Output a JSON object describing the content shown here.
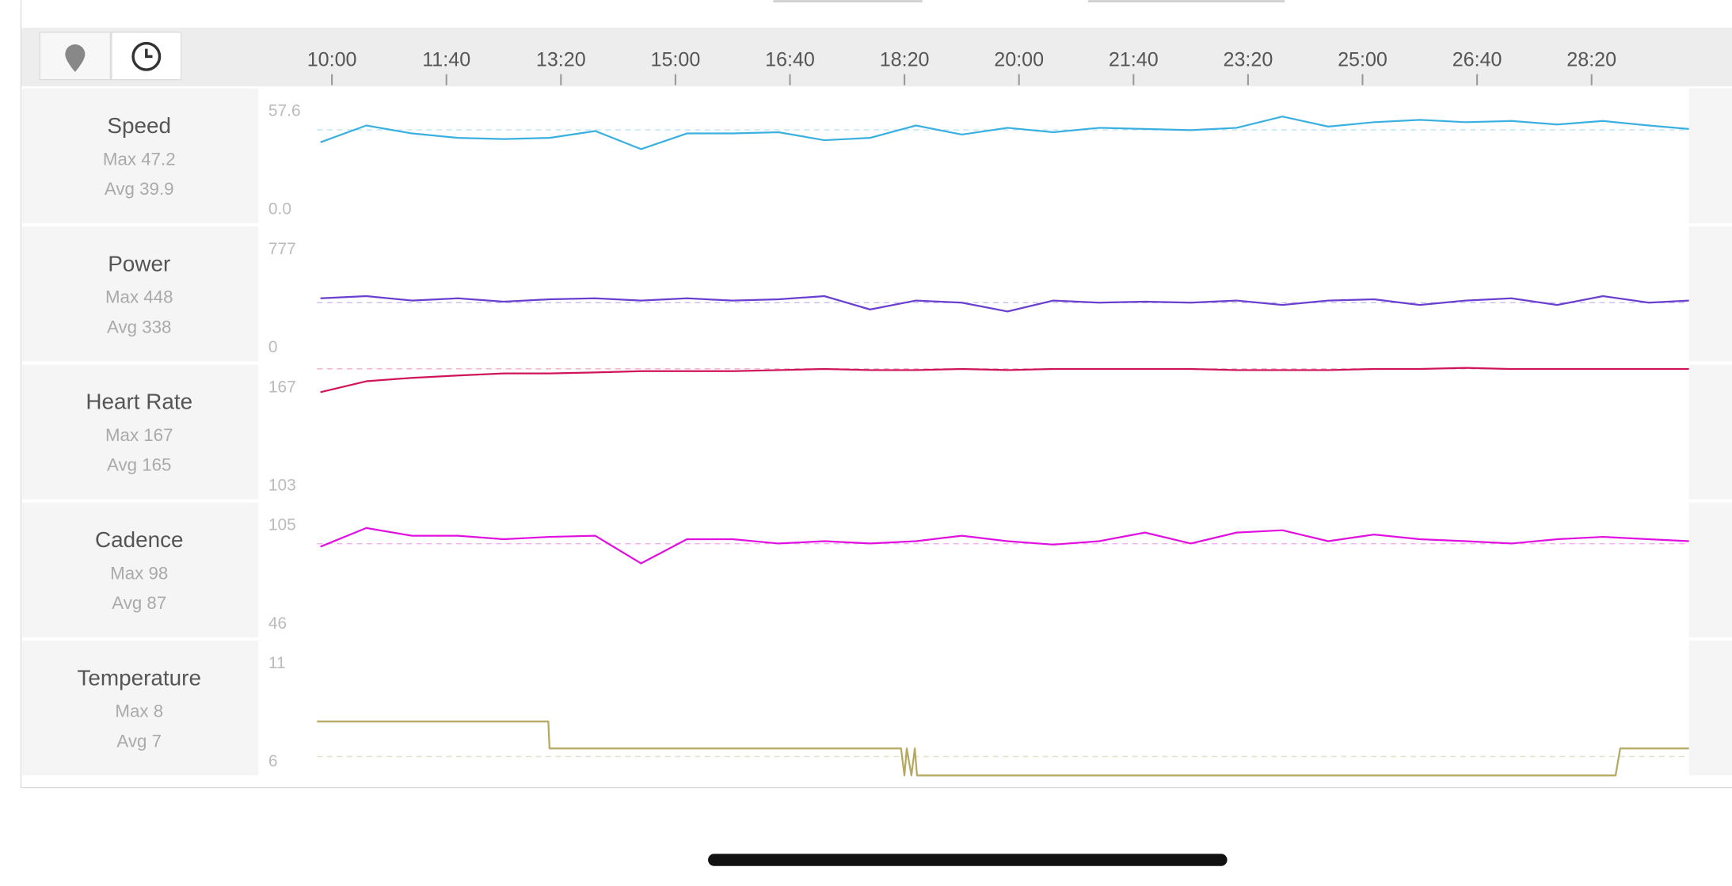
{
  "time_axis": {
    "xlim": [
      587,
      1785
    ],
    "xticks": [
      {
        "value": 600,
        "label": "10:00"
      },
      {
        "value": 700,
        "label": "11:40"
      },
      {
        "value": 800,
        "label": "13:20"
      },
      {
        "value": 900,
        "label": "15:00"
      },
      {
        "value": 1000,
        "label": "16:40"
      },
      {
        "value": 1100,
        "label": "18:20"
      },
      {
        "value": 1200,
        "label": "20:00"
      },
      {
        "value": 1300,
        "label": "21:40"
      },
      {
        "value": 1400,
        "label": "23:20"
      },
      {
        "value": 1500,
        "label": "25:00"
      },
      {
        "value": 1600,
        "label": "26:40"
      },
      {
        "value": 1700,
        "label": "28:20"
      }
    ]
  },
  "chart_data": [
    {
      "type": "line",
      "title": "Speed",
      "max_label": "Max 47.2",
      "avg_label": "Avg 39.9",
      "color": "#3ab0e0",
      "ylim": [
        0,
        57.6
      ],
      "yticks": [
        {
          "value": 0,
          "label": "0.0"
        },
        57.6
      ],
      "reference_line": 39.9,
      "x": [
        590,
        630,
        670,
        710,
        750,
        790,
        830,
        870,
        910,
        950,
        990,
        1030,
        1070,
        1110,
        1150,
        1190,
        1230,
        1270,
        1310,
        1350,
        1390,
        1430,
        1470,
        1510,
        1550,
        1590,
        1630,
        1670,
        1710,
        1750,
        1785
      ],
      "values": [
        34.6,
        41.8,
        38.4,
        36.5,
        36,
        36.5,
        39.4,
        31.7,
        38.4,
        38.4,
        38.9,
        35.5,
        36.5,
        41.8,
        37.9,
        40.8,
        38.9,
        40.8,
        40.3,
        39.8,
        40.8,
        45.6,
        41.3,
        43.2,
        44.2,
        43.2,
        43.7,
        42.2,
        43.7,
        41.8,
        40.3
      ]
    },
    {
      "type": "line",
      "title": "Power",
      "max_label": "Max 448",
      "avg_label": "Avg 338",
      "color": "#6a3fd0",
      "ylim": [
        0,
        777
      ],
      "yticks": [
        0,
        777
      ],
      "reference_line": 338,
      "x": [
        590,
        630,
        670,
        710,
        750,
        790,
        830,
        870,
        910,
        950,
        990,
        1030,
        1070,
        1110,
        1150,
        1190,
        1230,
        1270,
        1310,
        1350,
        1390,
        1430,
        1470,
        1510,
        1550,
        1590,
        1630,
        1670,
        1710,
        1750,
        1785
      ],
      "values": [
        363,
        376,
        350,
        363,
        344,
        357,
        363,
        350,
        363,
        350,
        357,
        376,
        299,
        350,
        338,
        287,
        350,
        338,
        344,
        338,
        350,
        325,
        350,
        357,
        325,
        350,
        363,
        325,
        376,
        338,
        350
      ]
    },
    {
      "type": "line",
      "title": "Heart Rate",
      "max_label": "Max 167",
      "avg_label": "Avg 165",
      "color": "#d0145a",
      "ylim": [
        103,
        167
      ],
      "yticks": [
        103,
        167
      ],
      "reference_line": 165,
      "x": [
        590,
        630,
        670,
        710,
        750,
        790,
        830,
        870,
        910,
        950,
        990,
        1030,
        1070,
        1110,
        1150,
        1190,
        1230,
        1270,
        1310,
        1350,
        1390,
        1430,
        1470,
        1510,
        1550,
        1590,
        1630,
        1670,
        1710,
        1750,
        1785
      ],
      "values": [
        153.9,
        159.1,
        160.7,
        161.8,
        162.8,
        162.8,
        163.3,
        163.9,
        163.9,
        163.9,
        164.4,
        164.9,
        164.4,
        164.4,
        164.9,
        164.4,
        164.9,
        164.9,
        164.9,
        164.9,
        164.4,
        164.4,
        164.4,
        164.9,
        164.9,
        165.4,
        164.9,
        164.9,
        164.9,
        164.9,
        164.9
      ]
    },
    {
      "type": "line",
      "title": "Cadence",
      "max_label": "Max 98",
      "avg_label": "Avg 87",
      "color": "#e010e0",
      "ylim": [
        46,
        105
      ],
      "yticks": [
        46,
        105
      ],
      "reference_line": 87,
      "x": [
        590,
        630,
        670,
        710,
        750,
        790,
        830,
        870,
        910,
        950,
        990,
        1030,
        1070,
        1110,
        1150,
        1190,
        1230,
        1270,
        1310,
        1350,
        1390,
        1430,
        1470,
        1510,
        1550,
        1590,
        1630,
        1670,
        1710,
        1750,
        1785
      ],
      "values": [
        85.7,
        93.9,
        90.5,
        90.5,
        89,
        90,
        90.5,
        78.4,
        89,
        89,
        87.1,
        88.1,
        87.1,
        88.1,
        90.5,
        88.1,
        86.6,
        88.1,
        91.9,
        87.1,
        91.9,
        92.9,
        88.1,
        91,
        89,
        88.1,
        87.1,
        89,
        90,
        89,
        88.1
      ]
    },
    {
      "type": "line",
      "title": "Temperature",
      "max_label": "Max 8",
      "avg_label": "Avg 7",
      "color": "#b5a860",
      "ylim": [
        6,
        11
      ],
      "yticks": [
        6,
        11
      ],
      "reference_line": 6.7,
      "x": [
        587,
        789,
        790,
        1097,
        1100,
        1102,
        1106,
        1109,
        1111,
        1721,
        1725,
        1785
      ],
      "values": [
        8,
        8,
        7,
        7,
        6,
        7,
        6,
        7,
        6,
        6,
        7,
        7
      ]
    }
  ]
}
